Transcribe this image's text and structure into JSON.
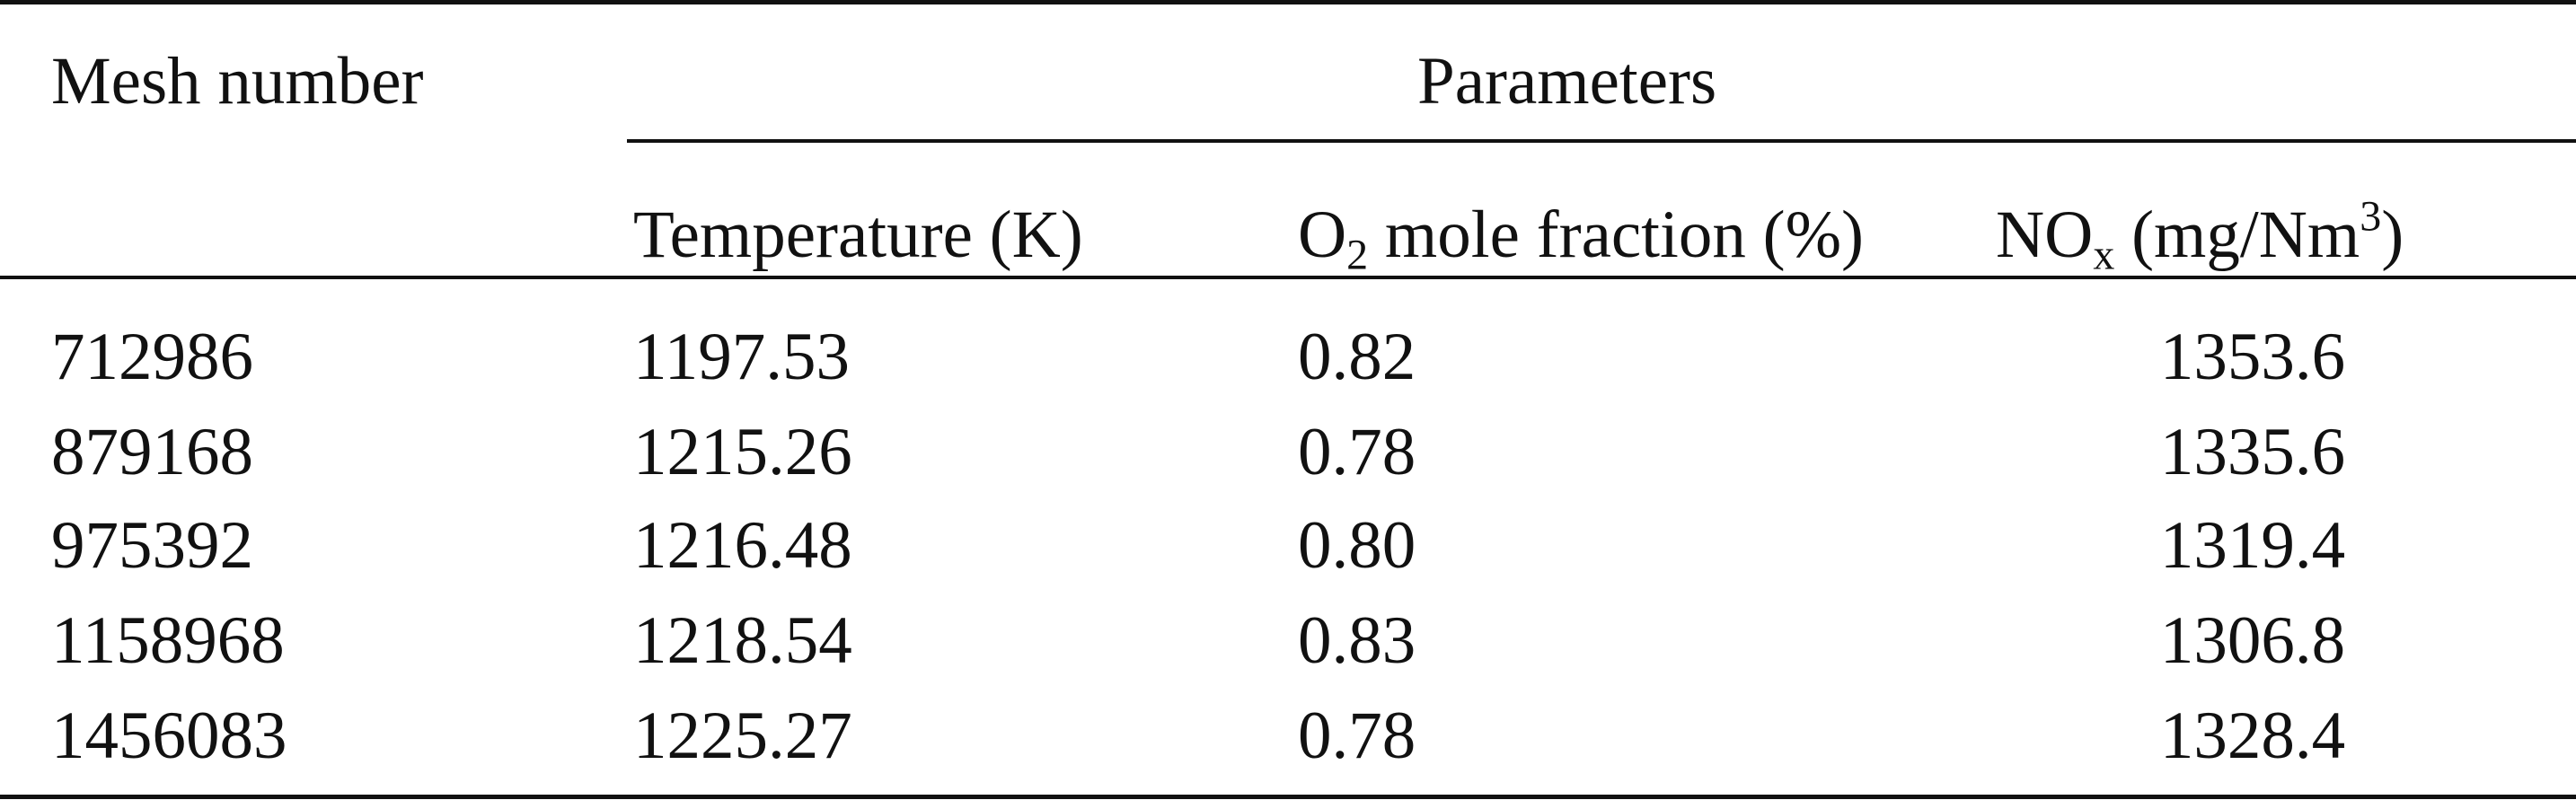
{
  "table": {
    "header": {
      "mesh": "Mesh number",
      "parameters": "Parameters",
      "temperature": "Temperature (K)",
      "o2_prefix": "O",
      "o2_sub": "2",
      "o2_suffix": " mole fraction (%)",
      "nox_prefix": "NO",
      "nox_sub": "x",
      "nox_mid": " (mg/Nm",
      "nox_sup": "3",
      "nox_suffix": ")"
    },
    "rows": [
      {
        "mesh": "712986",
        "temperature": "1197.53",
        "o2": "0.82",
        "nox": "1353.6"
      },
      {
        "mesh": "879168",
        "temperature": "1215.26",
        "o2": "0.78",
        "nox": "1335.6"
      },
      {
        "mesh": "975392",
        "temperature": "1216.48",
        "o2": "0.80",
        "nox": "1319.4"
      },
      {
        "mesh": "1158968",
        "temperature": "1218.54",
        "o2": "0.83",
        "nox": "1306.8"
      },
      {
        "mesh": "1456083",
        "temperature": "1225.27",
        "o2": "0.78",
        "nox": "1328.4"
      }
    ]
  }
}
